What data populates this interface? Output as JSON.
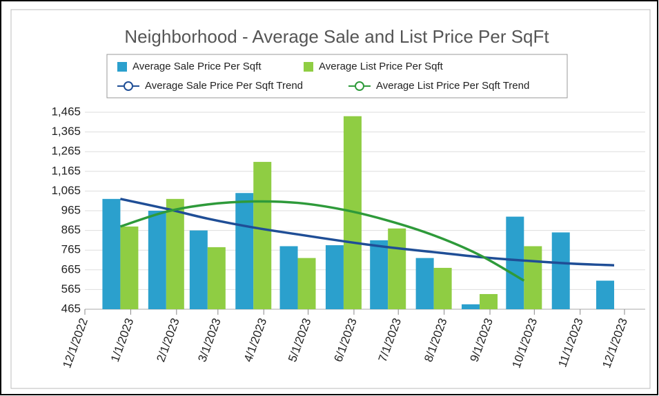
{
  "chart_data": {
    "type": "bar",
    "title": "Neighborhood - Average Sale and List Price Per SqFt",
    "x": [
      "1/1/2023",
      "2/1/2023",
      "3/1/2023",
      "4/1/2023",
      "5/1/2023",
      "6/1/2023",
      "7/1/2023",
      "8/1/2023",
      "9/1/2023",
      "10/1/2023",
      "11/1/2023",
      "12/1/2023"
    ],
    "xlim": [
      "12/1/2022",
      "12/15/2023"
    ],
    "xticks": [
      "12/1/2022",
      "1/1/2023",
      "2/1/2023",
      "3/1/2023",
      "4/1/2023",
      "5/1/2023",
      "6/1/2023",
      "7/1/2023",
      "8/1/2023",
      "9/1/2023",
      "10/1/2023",
      "11/1/2023",
      "12/1/2023"
    ],
    "ylim": [
      465,
      1465
    ],
    "yticks": [
      465,
      565,
      665,
      765,
      865,
      965,
      {
        "value": 1065,
        "label": "1,065"
      },
      {
        "value": 1165,
        "label": "1,165"
      },
      {
        "value": 1265,
        "label": "1,265"
      },
      {
        "value": 1365,
        "label": "1,365"
      },
      {
        "value": 1465,
        "label": "1,465"
      }
    ],
    "grid": true,
    "legend": "top",
    "series": [
      {
        "name": "Average Sale Price Per Sqft",
        "type": "bar",
        "color": "#2ba0cd",
        "values": [
          1025,
          965,
          865,
          1055,
          785,
          790,
          815,
          725,
          490,
          935,
          855,
          610
        ]
      },
      {
        "name": "Average List Price Per Sqft",
        "type": "bar",
        "color": "#8fcd43",
        "values": [
          885,
          1025,
          780,
          1213,
          725,
          1445,
          875,
          675,
          542,
          785,
          null,
          null
        ]
      },
      {
        "name": "Average Sale Price Per Sqft Trend",
        "type": "line",
        "color": "#1f4e96",
        "values": [
          1025,
          975,
          925,
          880,
          845,
          810,
          780,
          755,
          730,
          712,
          697,
          688
        ]
      },
      {
        "name": "Average List Price Per Sqft Trend",
        "type": "line",
        "color": "#2e9a3a",
        "values": [
          885,
          960,
          997,
          1012,
          1005,
          970,
          915,
          840,
          740,
          610,
          null,
          null
        ]
      }
    ]
  }
}
